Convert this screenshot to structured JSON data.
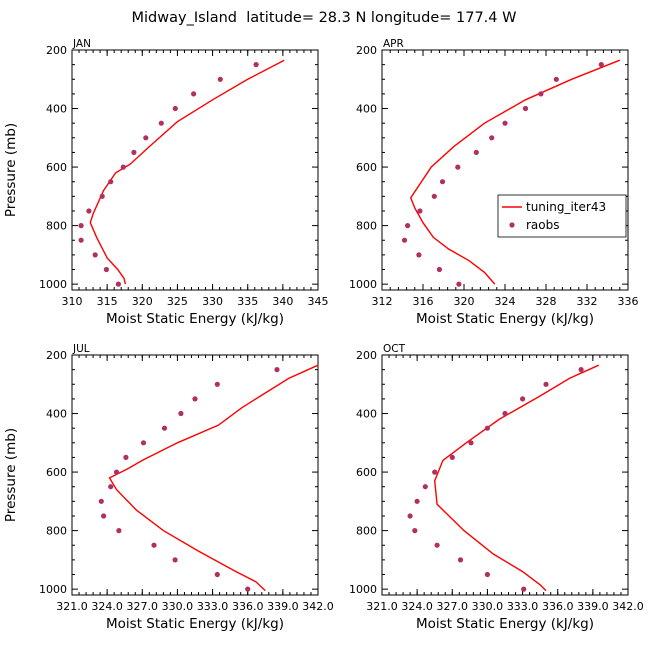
{
  "figure_title": "Midway_Island  latitude= 28.3 N longitude= 177.4 W",
  "legend": {
    "model_label": "tuning_iter43",
    "obs_label": "raobs"
  },
  "colors": {
    "model": "#ff0000",
    "obs": "#b03060",
    "axis": "#000000"
  },
  "chart_data": [
    {
      "type": "line",
      "title": "JAN",
      "xlabel": "Moist Static Energy (kJ/kg)",
      "ylabel": "Pressure (mb)",
      "xlim": [
        310,
        345
      ],
      "ylim": [
        200,
        1020
      ],
      "xticks": [
        310,
        315,
        320,
        325,
        330,
        335,
        340,
        345
      ],
      "xtick_labels": [
        "310",
        "315",
        "320",
        "325",
        "330",
        "335",
        "340",
        "345"
      ],
      "yticks": [
        200,
        400,
        600,
        800,
        1000
      ],
      "ytick_labels": [
        "200",
        "400",
        "600",
        "800",
        "1000"
      ],
      "series": [
        {
          "name": "tuning_iter43",
          "style": "line",
          "x": [
            340.2,
            335,
            330,
            325,
            321,
            318.3,
            316.2,
            314.5,
            313.0,
            312.6,
            313.5,
            315.0,
            316.5,
            317.4,
            317.6
          ],
          "y": [
            235,
            300,
            370,
            445,
            530,
            590,
            620,
            680,
            760,
            790,
            840,
            910,
            950,
            980,
            1000
          ]
        },
        {
          "name": "raobs",
          "style": "markers",
          "x": [
            336.2,
            331.1,
            327.3,
            324.7,
            322.7,
            320.5,
            318.8,
            317.3,
            315.5,
            314.3,
            312.4,
            311.3,
            311.3,
            313.3,
            314.9,
            316.6
          ],
          "y": [
            250,
            300,
            350,
            400,
            450,
            500,
            550,
            600,
            650,
            700,
            750,
            800,
            850,
            900,
            950,
            1000
          ]
        }
      ]
    },
    {
      "type": "line",
      "title": "APR",
      "xlabel": "Moist Static Energy (kJ/kg)",
      "ylabel": "",
      "xlim": [
        312,
        336
      ],
      "ylim": [
        200,
        1020
      ],
      "xticks": [
        312,
        316,
        320,
        324,
        328,
        332,
        336
      ],
      "xtick_labels": [
        "312",
        "316",
        "320",
        "324",
        "328",
        "332",
        "336"
      ],
      "yticks": [
        200,
        400,
        600,
        800,
        1000
      ],
      "ytick_labels": [
        "200",
        "400",
        "600",
        "800",
        "1000"
      ],
      "series": [
        {
          "name": "tuning_iter43",
          "style": "line",
          "x": [
            335.2,
            330.5,
            326.0,
            322.0,
            319.0,
            316.8,
            314.8,
            315.2,
            316.0,
            317.0,
            318.5,
            320.5,
            322.0,
            323.0
          ],
          "y": [
            235,
            300,
            370,
            450,
            530,
            600,
            705,
            740,
            790,
            840,
            880,
            920,
            960,
            1000
          ]
        },
        {
          "name": "raobs",
          "style": "markers",
          "x": [
            333.4,
            329.0,
            327.5,
            326.0,
            324.0,
            322.7,
            321.2,
            319.4,
            317.9,
            317.1,
            315.7,
            314.5,
            314.2,
            315.6,
            317.6,
            319.5
          ],
          "y": [
            250,
            300,
            350,
            400,
            450,
            500,
            550,
            600,
            650,
            700,
            750,
            800,
            850,
            900,
            950,
            1000
          ]
        }
      ]
    },
    {
      "type": "line",
      "title": "JUL",
      "xlabel": "Moist Static Energy (kJ/kg)",
      "ylabel": "Pressure (mb)",
      "xlim": [
        321.0,
        342.0
      ],
      "ylim": [
        200,
        1020
      ],
      "xticks": [
        321.0,
        324.0,
        327.0,
        330.0,
        333.0,
        336.0,
        339.0,
        342.0
      ],
      "xtick_labels": [
        "321.0",
        "324.0",
        "327.0",
        "330.0",
        "333.0",
        "336.0",
        "339.0",
        "342.0"
      ],
      "yticks": [
        200,
        400,
        600,
        800,
        1000
      ],
      "ytick_labels": [
        "200",
        "400",
        "600",
        "800",
        "1000"
      ],
      "series": [
        {
          "name": "tuning_iter43",
          "style": "line",
          "x": [
            342.0,
            339.5,
            337.5,
            335.5,
            333.5,
            330.0,
            327.0,
            325.7,
            324.2,
            324.8,
            326.5,
            328.8,
            331.8,
            335.0,
            336.7,
            337.5
          ],
          "y": [
            235,
            280,
            330,
            380,
            440,
            500,
            560,
            590,
            620,
            660,
            730,
            800,
            870,
            940,
            975,
            1005
          ]
        },
        {
          "name": "raobs",
          "style": "markers",
          "x": [
            338.5,
            333.4,
            331.5,
            330.3,
            328.9,
            327.1,
            325.6,
            324.8,
            324.3,
            323.5,
            323.7,
            325.0,
            328.0,
            329.8,
            333.4,
            336.0
          ],
          "y": [
            250,
            300,
            350,
            400,
            450,
            500,
            550,
            600,
            650,
            700,
            750,
            800,
            850,
            900,
            950,
            1000
          ]
        }
      ]
    },
    {
      "type": "line",
      "title": "OCT",
      "xlabel": "Moist Static Energy (kJ/kg)",
      "ylabel": "",
      "xlim": [
        321.0,
        342.0
      ],
      "ylim": [
        200,
        1020
      ],
      "xticks": [
        321.0,
        324.0,
        327.0,
        330.0,
        333.0,
        336.0,
        339.0,
        342.0
      ],
      "xtick_labels": [
        "321.0",
        "324.0",
        "327.0",
        "330.0",
        "333.0",
        "336.0",
        "339.0",
        "342.0"
      ],
      "yticks": [
        200,
        400,
        600,
        800,
        1000
      ],
      "ytick_labels": [
        "200",
        "400",
        "600",
        "800",
        "1000"
      ],
      "series": [
        {
          "name": "tuning_iter43",
          "style": "line",
          "x": [
            339.5,
            337.0,
            334.5,
            331.0,
            328.2,
            326.2,
            325.5,
            325.7,
            328.0,
            330.5,
            333.0,
            334.5,
            335.0
          ],
          "y": [
            235,
            280,
            340,
            420,
            500,
            560,
            630,
            710,
            800,
            880,
            940,
            985,
            1005
          ]
        },
        {
          "name": "raobs",
          "style": "markers",
          "x": [
            338.0,
            335.0,
            333.0,
            331.5,
            330.0,
            328.6,
            327.0,
            325.5,
            324.7,
            324.0,
            323.4,
            323.8,
            325.7,
            327.7,
            330.0,
            333.1
          ],
          "y": [
            250,
            300,
            350,
            400,
            450,
            500,
            550,
            600,
            650,
            700,
            750,
            800,
            850,
            900,
            950,
            1000
          ]
        }
      ]
    }
  ]
}
